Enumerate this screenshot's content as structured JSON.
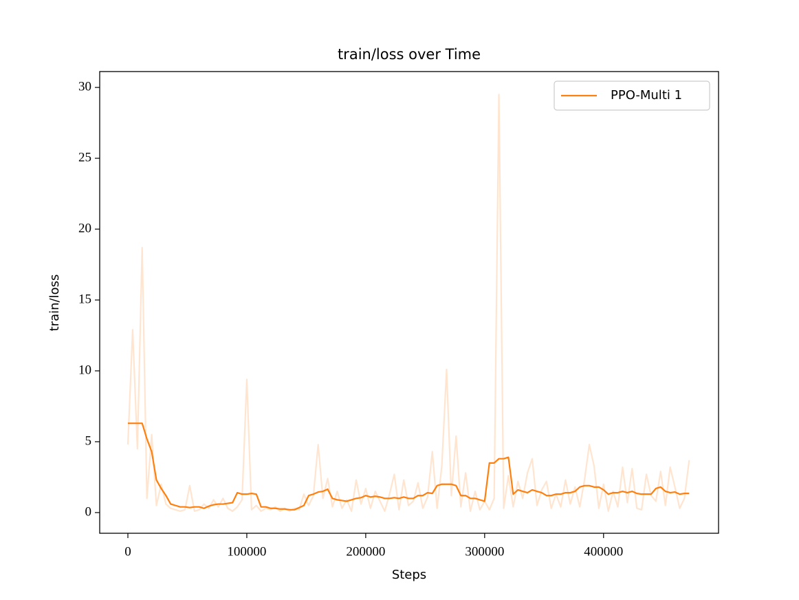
{
  "chart_data": {
    "type": "line",
    "title": "train/loss over Time",
    "xlabel": "Steps",
    "ylabel": "train/loss",
    "x": [
      0,
      4000,
      8000,
      12000,
      16000,
      20000,
      24000,
      28000,
      32000,
      36000,
      40000,
      44000,
      48000,
      52000,
      56000,
      60000,
      64000,
      68000,
      72000,
      76000,
      80000,
      84000,
      88000,
      92000,
      96000,
      100000,
      104000,
      108000,
      112000,
      116000,
      120000,
      124000,
      128000,
      132000,
      136000,
      140000,
      144000,
      148000,
      152000,
      156000,
      160000,
      164000,
      168000,
      172000,
      176000,
      180000,
      184000,
      188000,
      192000,
      196000,
      200000,
      204000,
      208000,
      212000,
      216000,
      220000,
      224000,
      228000,
      232000,
      236000,
      240000,
      244000,
      248000,
      252000,
      256000,
      260000,
      264000,
      268000,
      272000,
      276000,
      280000,
      284000,
      288000,
      292000,
      296000,
      300000,
      304000,
      308000,
      312000,
      316000,
      320000,
      324000,
      328000,
      332000,
      336000,
      340000,
      344000,
      348000,
      352000,
      356000,
      360000,
      364000,
      368000,
      372000,
      376000,
      380000,
      384000,
      388000,
      392000,
      396000,
      400000,
      404000,
      408000,
      412000,
      416000,
      420000,
      424000,
      428000,
      432000,
      436000,
      440000,
      444000,
      448000,
      452000,
      456000,
      460000,
      464000,
      468000,
      472000
    ],
    "series": [
      {
        "color": "#ff7f0e",
        "alpha": 0.2,
        "values": [
          4.8,
          12.9,
          4.5,
          18.7,
          1.0,
          5.5,
          0.5,
          2.0,
          0.6,
          0.3,
          0.2,
          0.1,
          0.2,
          1.9,
          0.1,
          0.2,
          0.6,
          0.3,
          0.9,
          0.4,
          1.0,
          0.3,
          0.1,
          0.4,
          0.9,
          9.4,
          0.2,
          0.5,
          0.1,
          0.3,
          0.2,
          0.4,
          0.1,
          0.3,
          0.1,
          0.3,
          0.2,
          1.3,
          0.5,
          1.2,
          4.8,
          1.0,
          2.4,
          0.4,
          1.5,
          0.3,
          0.9,
          0.1,
          2.3,
          0.6,
          1.7,
          0.3,
          1.5,
          0.8,
          0.1,
          1.3,
          2.7,
          0.2,
          2.3,
          0.5,
          0.8,
          2.1,
          0.3,
          1.1,
          4.3,
          0.3,
          3.3,
          10.1,
          1.2,
          5.4,
          0.4,
          2.8,
          0.1,
          1.5,
          0.2,
          0.8,
          0.2,
          1.0,
          29.5,
          0.3,
          2.6,
          0.4,
          2.2,
          1.0,
          2.8,
          3.8,
          0.5,
          1.6,
          2.2,
          0.3,
          1.3,
          0.4,
          2.3,
          0.6,
          1.8,
          0.4,
          2.3,
          4.8,
          3.3,
          0.3,
          2.0,
          0.1,
          1.5,
          0.4,
          3.2,
          0.7,
          3.1,
          0.3,
          0.2,
          2.7,
          1.2,
          0.8,
          2.9,
          0.5,
          3.2,
          1.8,
          0.3,
          1.0,
          3.7
        ]
      },
      {
        "name": "PPO-Multi 1",
        "color": "#ff7f0e",
        "alpha": 1,
        "values": [
          6.3,
          6.3,
          6.3,
          6.3,
          5.2,
          4.3,
          2.3,
          1.7,
          1.2,
          0.6,
          0.5,
          0.4,
          0.4,
          0.35,
          0.4,
          0.4,
          0.3,
          0.45,
          0.55,
          0.6,
          0.6,
          0.65,
          0.7,
          1.4,
          1.3,
          1.3,
          1.35,
          1.3,
          0.4,
          0.4,
          0.3,
          0.3,
          0.25,
          0.25,
          0.2,
          0.2,
          0.35,
          0.5,
          1.2,
          1.3,
          1.45,
          1.5,
          1.65,
          1.0,
          0.9,
          0.85,
          0.8,
          0.9,
          1.0,
          1.05,
          1.2,
          1.1,
          1.15,
          1.1,
          1.0,
          1.0,
          1.05,
          1.0,
          1.1,
          1.0,
          1.0,
          1.2,
          1.2,
          1.4,
          1.35,
          1.9,
          2.0,
          2.0,
          2.0,
          1.9,
          1.2,
          1.2,
          1.0,
          1.0,
          0.9,
          0.8,
          3.5,
          3.5,
          3.8,
          3.8,
          3.9,
          1.3,
          1.6,
          1.5,
          1.4,
          1.6,
          1.5,
          1.4,
          1.2,
          1.2,
          1.3,
          1.3,
          1.4,
          1.4,
          1.5,
          1.8,
          1.9,
          1.9,
          1.8,
          1.8,
          1.6,
          1.3,
          1.4,
          1.4,
          1.5,
          1.4,
          1.5,
          1.35,
          1.3,
          1.3,
          1.3,
          1.7,
          1.8,
          1.5,
          1.4,
          1.45,
          1.3,
          1.35,
          1.35
        ]
      }
    ],
    "xlim": [
      -23700,
      496700
    ],
    "ylim": [
      -1.46,
      31.12
    ],
    "xticks": [
      0,
      100000,
      200000,
      300000,
      400000
    ],
    "yticks": [
      0,
      5,
      10,
      15,
      20,
      25,
      30
    ],
    "legend": "upper right"
  }
}
